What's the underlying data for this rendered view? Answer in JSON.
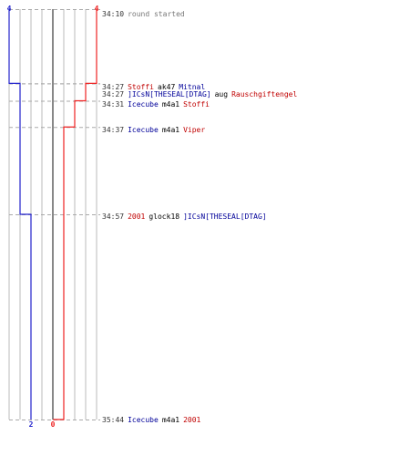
{
  "colors": {
    "blue_team": "#2222cc",
    "red_team": "#ee2222",
    "grid": "#bbbbbb",
    "center_line": "#555555",
    "guide": "#aaaaaa",
    "text_black": "#000000",
    "text_gray": "#777777",
    "player_red": "#c00000",
    "player_blue": "#000099"
  },
  "round": {
    "start_time": "34:10",
    "start_label": "round started",
    "blue_count_start": "4",
    "red_count_start": "4",
    "blue_count_end": "2",
    "red_count_end": "0"
  },
  "events": [
    {
      "time": "34:27",
      "killer": "Stoffi",
      "killer_team": "red",
      "weapon": "ak47",
      "victim": "Mitnal",
      "victim_team": "blue"
    },
    {
      "time": "34:27",
      "killer": "]ICsN[THESEAL[DTAG]",
      "killer_team": "blue",
      "weapon": "aug",
      "victim": "Rauschgiftengel",
      "victim_team": "red"
    },
    {
      "time": "34:31",
      "killer": "Icecube",
      "killer_team": "blue",
      "weapon": "m4a1",
      "victim": "Stoffi",
      "victim_team": "red"
    },
    {
      "time": "34:37",
      "killer": "Icecube",
      "killer_team": "blue",
      "weapon": "m4a1",
      "victim": "Viper",
      "victim_team": "red"
    },
    {
      "time": "34:57",
      "killer": "2001",
      "killer_team": "red",
      "weapon": "glock18",
      "victim": "]ICsN[THESEAL[DTAG]",
      "victim_team": "blue"
    },
    {
      "time": "35:44",
      "killer": "Icecube",
      "killer_team": "blue",
      "weapon": "m4a1",
      "victim": "2001",
      "victim_team": "red"
    }
  ],
  "chart_data": {
    "type": "line",
    "x_start": "34:10",
    "x_end": "35:44",
    "ylim": [
      0,
      4
    ],
    "series": [
      {
        "team": "blue",
        "steps": [
          {
            "time": "34:10",
            "alive": 4
          },
          {
            "time": "34:27",
            "alive": 3
          },
          {
            "time": "34:57",
            "alive": 2
          },
          {
            "time": "35:44",
            "alive": 2
          }
        ]
      },
      {
        "team": "red",
        "steps": [
          {
            "time": "34:10",
            "alive": 4
          },
          {
            "time": "34:27",
            "alive": 3
          },
          {
            "time": "34:31",
            "alive": 2
          },
          {
            "time": "34:37",
            "alive": 1
          },
          {
            "time": "35:44",
            "alive": 0
          }
        ]
      }
    ]
  }
}
